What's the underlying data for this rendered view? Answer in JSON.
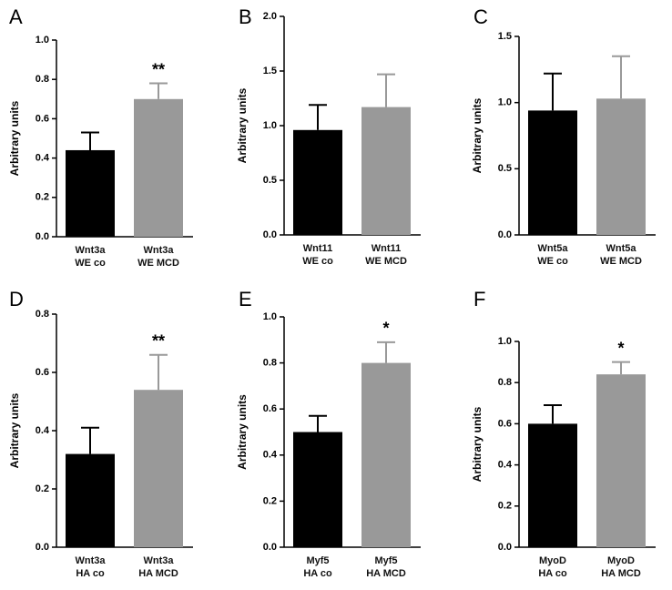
{
  "chart_data": [
    {
      "type": "bar",
      "panel_label": "A",
      "y_label": "Arbitrary units",
      "categories": [
        "Wnt3a\nWE co",
        "Wnt3a\nWE MCD"
      ],
      "values": [
        0.44,
        0.7
      ],
      "errors": [
        0.09,
        0.08
      ],
      "colors": [
        "#000000",
        "#999999"
      ],
      "significance": [
        null,
        "**"
      ],
      "ylim": [
        0,
        1.0
      ],
      "yticks": [
        {
          "value": 0,
          "label": "0.0"
        },
        0.2,
        0.4,
        0.6,
        0.8,
        {
          "value": 1.0,
          "label": "1.0"
        }
      ]
    },
    {
      "type": "bar",
      "panel_label": "B",
      "y_label": "Arbitrary units",
      "categories": [
        "Wnt11\nWE co",
        "Wnt11\nWE MCD"
      ],
      "values": [
        0.96,
        1.17
      ],
      "errors": [
        0.23,
        0.3
      ],
      "colors": [
        "#000000",
        "#999999"
      ],
      "significance": [
        null,
        null
      ],
      "ylim": [
        0,
        2.0
      ],
      "yticks": [
        {
          "value": 0,
          "label": "0.0"
        },
        0.5,
        {
          "value": 1.0,
          "label": "1.0"
        },
        1.5,
        {
          "value": 2.0,
          "label": "2.0"
        }
      ]
    },
    {
      "type": "bar",
      "panel_label": "C",
      "y_label": "Arbitrary units",
      "categories": [
        "Wnt5a\nWE co",
        "Wnt5a\nWE MCD"
      ],
      "values": [
        0.94,
        1.03
      ],
      "errors": [
        0.28,
        0.32
      ],
      "colors": [
        "#000000",
        "#999999"
      ],
      "significance": [
        null,
        null
      ],
      "ylim": [
        0,
        1.5
      ],
      "yticks": [
        {
          "value": 0,
          "label": "0.0"
        },
        0.5,
        {
          "value": 1.0,
          "label": "1.0"
        },
        1.5
      ]
    },
    {
      "type": "bar",
      "panel_label": "D",
      "y_label": "Arbitrary units",
      "categories": [
        "Wnt3a\nHA co",
        "Wnt3a\nHA MCD"
      ],
      "values": [
        0.32,
        0.54
      ],
      "errors": [
        0.09,
        0.12
      ],
      "colors": [
        "#000000",
        "#999999"
      ],
      "significance": [
        null,
        "**"
      ],
      "ylim": [
        0,
        0.8
      ],
      "yticks": [
        {
          "value": 0,
          "label": "0.0"
        },
        0.2,
        0.4,
        0.6,
        0.8
      ]
    },
    {
      "type": "bar",
      "panel_label": "E",
      "y_label": "Arbitrary units",
      "categories": [
        "Myf5\nHA co",
        "Myf5\nHA MCD"
      ],
      "values": [
        0.5,
        0.8
      ],
      "errors": [
        0.07,
        0.09
      ],
      "colors": [
        "#000000",
        "#999999"
      ],
      "significance": [
        null,
        "*"
      ],
      "ylim": [
        0,
        1.0
      ],
      "yticks": [
        {
          "value": 0,
          "label": "0.0"
        },
        0.2,
        0.4,
        0.6,
        0.8,
        {
          "value": 1.0,
          "label": "1.0"
        }
      ]
    },
    {
      "type": "bar",
      "panel_label": "F",
      "y_label": "Arbitrary units",
      "categories": [
        "MyoD\nHA co",
        "MyoD\nHA MCD"
      ],
      "values": [
        0.6,
        0.84
      ],
      "errors": [
        0.09,
        0.06
      ],
      "colors": [
        "#000000",
        "#999999"
      ],
      "significance": [
        null,
        "*"
      ],
      "ylim": [
        0,
        1.0
      ],
      "yticks": [
        {
          "value": 0,
          "label": "0.0"
        },
        0.2,
        0.4,
        0.6,
        0.8,
        {
          "value": 1.0,
          "label": "1.0"
        }
      ]
    }
  ]
}
